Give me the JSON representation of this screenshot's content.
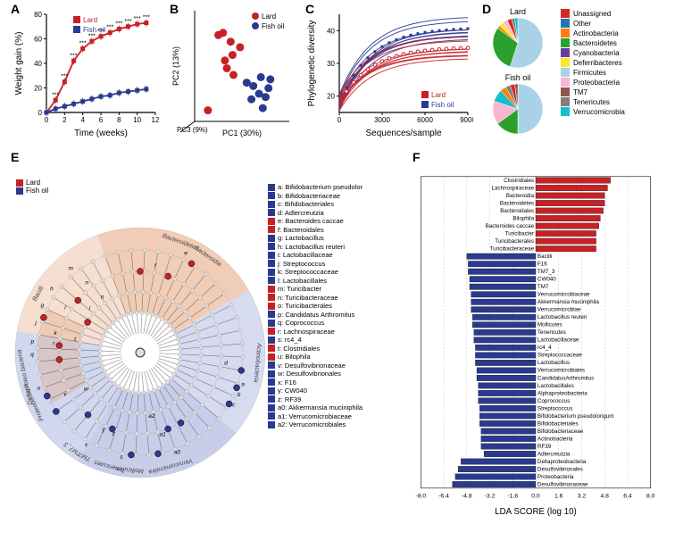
{
  "colors": {
    "lard": "#c72026",
    "fish": "#2b3a8f",
    "grid": "#d0d0d0",
    "axis": "#000000",
    "phyla": {
      "Unassigned": "#d62728",
      "Other": "#1f77b4",
      "Actinobacteria": "#ff7f0e",
      "Bacteroidetes": "#2ca02c",
      "Cyanobacteria": "#6a3d9a",
      "Deferribacteres": "#fde725",
      "Firmicutes": "#a9d2e6",
      "Proteobacteria": "#f7b6d2",
      "TM7": "#8c564b",
      "Tenericutes": "#7f7f7f",
      "Verrucomicrobia": "#17becf"
    }
  },
  "panelA": {
    "label": "A",
    "ylabel": "Weight gain (%)",
    "xlabel": "Time (weeks)",
    "xticks": [
      0,
      2,
      4,
      6,
      8,
      10,
      12
    ],
    "yticks": [
      0,
      20,
      40,
      60,
      80
    ],
    "legend": [
      "Lard",
      "Fish oil"
    ],
    "series": {
      "Lard": {
        "x": [
          0,
          1,
          2,
          3,
          4,
          5,
          6,
          7,
          8,
          9,
          10,
          11
        ],
        "y": [
          0,
          10,
          25,
          42,
          52,
          58,
          62,
          65,
          68,
          70,
          72,
          73
        ]
      },
      "FishOil": {
        "x": [
          0,
          1,
          2,
          3,
          4,
          5,
          6,
          7,
          8,
          9,
          10,
          11
        ],
        "y": [
          0,
          3,
          5,
          7,
          9,
          11,
          13,
          14,
          16,
          17,
          18,
          19
        ]
      }
    },
    "sig": {
      "x": [
        1,
        2,
        3,
        4,
        5,
        6,
        7,
        8,
        9,
        10,
        11
      ],
      "label": "***"
    }
  },
  "panelB": {
    "label": "B",
    "xlabel": "PC1 (30%)",
    "ylabel": "PC2 (13%)",
    "zlabel": "PC3 (9%)",
    "legend": [
      "Lard",
      "Fish oil"
    ],
    "points": {
      "Lard": [
        [
          0.25,
          0.78
        ],
        [
          0.3,
          0.8
        ],
        [
          0.32,
          0.55
        ],
        [
          0.38,
          0.72
        ],
        [
          0.4,
          0.6
        ],
        [
          0.34,
          0.48
        ],
        [
          0.48,
          0.67
        ],
        [
          0.14,
          0.1
        ],
        [
          0.41,
          0.42
        ]
      ],
      "FishOil": [
        [
          0.55,
          0.35
        ],
        [
          0.6,
          0.2
        ],
        [
          0.62,
          0.32
        ],
        [
          0.68,
          0.25
        ],
        [
          0.7,
          0.4
        ],
        [
          0.75,
          0.22
        ],
        [
          0.78,
          0.3
        ],
        [
          0.72,
          0.12
        ],
        [
          0.8,
          0.38
        ]
      ]
    }
  },
  "panelC": {
    "label": "C",
    "xlabel": "Sequences/sample",
    "ylabel": "Phylogenetic diversity",
    "xticks": [
      0,
      3000,
      6000,
      9000
    ],
    "yticks": [
      20,
      30,
      40
    ],
    "legend": [
      "Lard",
      "Fish oil"
    ]
  },
  "panelD": {
    "label": "D",
    "titles": [
      "Lard",
      "Fish oil"
    ],
    "lard_slices": {
      "Firmicutes": 55,
      "Bacteroidetes": 30,
      "Actinobacteria": 2,
      "Deferribacteres": 3,
      "Proteobacteria": 3,
      "Unassigned": 3,
      "Tenericutes": 2,
      "Verrucomicrobia": 2
    },
    "fish_slices": {
      "Firmicutes": 50,
      "Bacteroidetes": 15,
      "Proteobacteria": 15,
      "Verrucomicrobia": 8,
      "Actinobacteria": 4,
      "Tenericutes": 3,
      "Unassigned": 3,
      "TM7": 2
    },
    "legend_order": [
      "Unassigned",
      "Other",
      "Actinobacteria",
      "Bacteroidetes",
      "Cyanobacteria",
      "Deferribacteres",
      "Firmicutes",
      "Proteobacteria",
      "TM7",
      "Tenericutes",
      "Verrucomicrobia"
    ]
  },
  "panelE": {
    "label": "E",
    "legend": [
      "Lard",
      "Fish oil"
    ],
    "key": [
      {
        "k": "a",
        "t": "Bifidobacterium pseudolor",
        "c": "fish"
      },
      {
        "k": "b",
        "t": "Bifidobacteriaceae",
        "c": "fish"
      },
      {
        "k": "c",
        "t": "Bifidobacteriales",
        "c": "fish"
      },
      {
        "k": "d",
        "t": "Adlercreutzia",
        "c": "fish"
      },
      {
        "k": "e",
        "t": "Bacteroides caccae",
        "c": "lard"
      },
      {
        "k": "f",
        "t": "Bacteroidales",
        "c": "lard"
      },
      {
        "k": "g",
        "t": "Lactobacillus",
        "c": "fish"
      },
      {
        "k": "h",
        "t": "Lactobacillus reuteri",
        "c": "fish"
      },
      {
        "k": "i",
        "t": "Lactobacillaceae",
        "c": "fish"
      },
      {
        "k": "j",
        "t": "Streptococcus",
        "c": "fish"
      },
      {
        "k": "k",
        "t": "Streptococcaceae",
        "c": "fish"
      },
      {
        "k": "l",
        "t": "Lactobacillales",
        "c": "fish"
      },
      {
        "k": "m",
        "t": "Turicibacter",
        "c": "lard"
      },
      {
        "k": "n",
        "t": "Turicibacteraceae",
        "c": "lard"
      },
      {
        "k": "o",
        "t": "Turicibacterales",
        "c": "lard"
      },
      {
        "k": "p",
        "t": "Candidatus Arthromitus",
        "c": "fish"
      },
      {
        "k": "q",
        "t": "Coprococcus",
        "c": "fish"
      },
      {
        "k": "r",
        "t": "Lachnospiraceae",
        "c": "lard"
      },
      {
        "k": "s",
        "t": "rc4_4",
        "c": "fish"
      },
      {
        "k": "t",
        "t": "Clostridiales",
        "c": "lard"
      },
      {
        "k": "u",
        "t": "Bilophila",
        "c": "lard"
      },
      {
        "k": "v",
        "t": "Desulfovibrionaceae",
        "c": "fish"
      },
      {
        "k": "w",
        "t": "Desulfovibrionales",
        "c": "fish"
      },
      {
        "k": "x",
        "t": "F16",
        "c": "fish"
      },
      {
        "k": "y",
        "t": "CW040",
        "c": "fish"
      },
      {
        "k": "z",
        "t": "RF39",
        "c": "fish"
      },
      {
        "k": "a0",
        "t": "Akkermansia muciniphila",
        "c": "fish"
      },
      {
        "k": "a1",
        "t": "Verrucomicrobiaceae",
        "c": "fish"
      },
      {
        "k": "a2",
        "t": "Verrucomicrobiales",
        "c": "fish"
      }
    ],
    "ring_labels": [
      "Bacilli",
      "Bacteroidetes",
      "Bacteroidia",
      "Actinobacteria",
      "Verrucomicrobia",
      "Mollicutes",
      "Tenericutes",
      "TM7",
      "TM7_3",
      "Proteobacteria",
      "Deltaproteobacteria"
    ]
  },
  "panelF": {
    "label": "F",
    "xlabel": "LDA SCORE (log 10)",
    "xticks": [
      -8.0,
      -6.4,
      -4.8,
      -3.2,
      -1.6,
      0,
      1.6,
      3.2,
      4.8,
      6.4,
      8.0
    ],
    "bars": [
      {
        "t": "Clostridiales",
        "v": 5.2,
        "c": "lard"
      },
      {
        "t": "Lachnospiraceae",
        "v": 5.0,
        "c": "lard"
      },
      {
        "t": "Bacteroidia",
        "v": 4.8,
        "c": "lard"
      },
      {
        "t": "Bacteroidetes",
        "v": 4.8,
        "c": "lard"
      },
      {
        "t": "Bacteroidales",
        "v": 4.7,
        "c": "lard"
      },
      {
        "t": "Bilophila",
        "v": 4.5,
        "c": "lard"
      },
      {
        "t": "Bacteroides caccae",
        "v": 4.4,
        "c": "lard"
      },
      {
        "t": "Turicibacter",
        "v": 4.2,
        "c": "lard"
      },
      {
        "t": "Turicibacterales",
        "v": 4.2,
        "c": "lard"
      },
      {
        "t": "Turicibacteraceae",
        "v": 4.2,
        "c": "lard"
      },
      {
        "t": "Bacilli",
        "v": -4.8,
        "c": "fish"
      },
      {
        "t": "F16",
        "v": -4.7,
        "c": "fish"
      },
      {
        "t": "TM7_3",
        "v": -4.7,
        "c": "fish"
      },
      {
        "t": "CW040",
        "v": -4.6,
        "c": "fish"
      },
      {
        "t": "TM7",
        "v": -4.6,
        "c": "fish"
      },
      {
        "t": "Verrucomicrobiaceae",
        "v": -4.5,
        "c": "fish"
      },
      {
        "t": "Akkermansia muciniphila",
        "v": -4.5,
        "c": "fish"
      },
      {
        "t": "Verrucomicrobiae",
        "v": -4.5,
        "c": "fish"
      },
      {
        "t": "Lactobacillus reuteri",
        "v": -4.4,
        "c": "fish"
      },
      {
        "t": "Mollicutes",
        "v": -4.4,
        "c": "fish"
      },
      {
        "t": "Tenericutes",
        "v": -4.3,
        "c": "fish"
      },
      {
        "t": "Lactobacillaceae",
        "v": -4.3,
        "c": "fish"
      },
      {
        "t": "rc4_4",
        "v": -4.2,
        "c": "fish"
      },
      {
        "t": "Streptococcaceae",
        "v": -4.2,
        "c": "fish"
      },
      {
        "t": "Lactobacillus",
        "v": -4.2,
        "c": "fish"
      },
      {
        "t": "Verrucomicrobiales",
        "v": -4.1,
        "c": "fish"
      },
      {
        "t": "CandidatusArthromitus",
        "v": -4.1,
        "c": "fish"
      },
      {
        "t": "Lactobacillales",
        "v": -4.0,
        "c": "fish"
      },
      {
        "t": "Alphaproteobacteria",
        "v": -4.0,
        "c": "fish"
      },
      {
        "t": "Coprococcus",
        "v": -4.0,
        "c": "fish"
      },
      {
        "t": "Streptococcus",
        "v": -3.9,
        "c": "fish"
      },
      {
        "t": "Bifidobacterium pseudolongum",
        "v": -3.9,
        "c": "fish"
      },
      {
        "t": "Bifidobacteriales",
        "v": -3.9,
        "c": "fish"
      },
      {
        "t": "Bifidobacteriaceae",
        "v": -3.8,
        "c": "fish"
      },
      {
        "t": "Actinobacteria",
        "v": -3.8,
        "c": "fish"
      },
      {
        "t": "RF39",
        "v": -3.8,
        "c": "fish"
      },
      {
        "t": "Adlercreutzia",
        "v": -3.6,
        "c": "fish"
      },
      {
        "t": "Deltaproteobacteria",
        "v": -5.2,
        "c": "fish"
      },
      {
        "t": "Desulfovibrionales",
        "v": -5.4,
        "c": "fish"
      },
      {
        "t": "Proteobacteria",
        "v": -5.6,
        "c": "fish"
      },
      {
        "t": "Desulfovibrionaceae",
        "v": -5.8,
        "c": "fish"
      }
    ]
  }
}
